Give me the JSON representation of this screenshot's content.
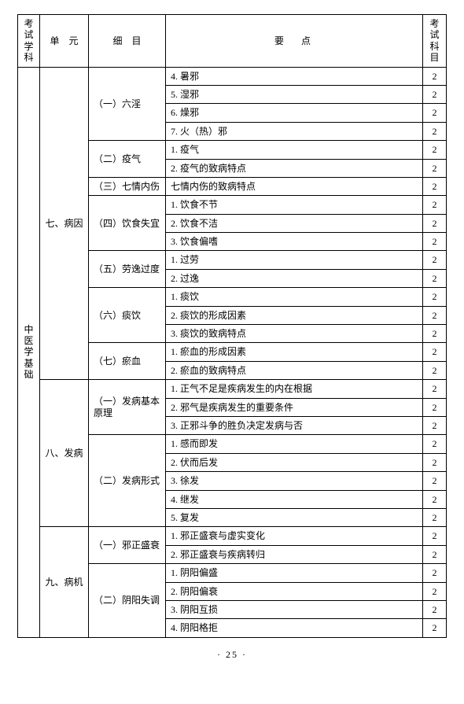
{
  "header": {
    "subject": "考试\n学科",
    "unit": "单　元",
    "detail": "细　目",
    "point": "要点",
    "subject2": "考试\n科目"
  },
  "subject_vertical": "中医学基础",
  "units": {
    "u7": "七、病因",
    "u8": "八、发病",
    "u9": "九、病机"
  },
  "details": {
    "d1": "（一）六淫",
    "d2": "（二）疫气",
    "d3": "（三）七情内伤",
    "d4": "（四）饮食失宜",
    "d5": "（五）劳逸过度",
    "d6": "（六）痰饮",
    "d7": "（七）瘀血",
    "d8": "（一）发病基本原理",
    "d9": "（二）发病形式",
    "d10": "（一）邪正盛衰",
    "d11": "（二）阴阳失调"
  },
  "rows": [
    {
      "point": "4. 暑邪",
      "subj2": "2"
    },
    {
      "point": "5. 湿邪",
      "subj2": "2"
    },
    {
      "point": "6. 燥邪",
      "subj2": "2"
    },
    {
      "point": "7. 火（热）邪",
      "subj2": "2"
    },
    {
      "point": "1. 疫气",
      "subj2": "2"
    },
    {
      "point": "2. 疫气的致病特点",
      "subj2": "2"
    },
    {
      "point": "七情内伤的致病特点",
      "subj2": "2"
    },
    {
      "point": "1. 饮食不节",
      "subj2": "2"
    },
    {
      "point": "2. 饮食不洁",
      "subj2": "2"
    },
    {
      "point": "3. 饮食偏嗜",
      "subj2": "2"
    },
    {
      "point": "1. 过劳",
      "subj2": "2"
    },
    {
      "point": "2. 过逸",
      "subj2": "2"
    },
    {
      "point": "1. 痰饮",
      "subj2": "2"
    },
    {
      "point": "2. 痰饮的形成因素",
      "subj2": "2"
    },
    {
      "point": "3. 痰饮的致病特点",
      "subj2": "2"
    },
    {
      "point": "1. 瘀血的形成因素",
      "subj2": "2"
    },
    {
      "point": "2. 瘀血的致病特点",
      "subj2": "2"
    },
    {
      "point": "1. 正气不足是疾病发生的内在根据",
      "subj2": "2"
    },
    {
      "point": "2. 邪气是疾病发生的重要条件",
      "subj2": "2"
    },
    {
      "point": "3. 正邪斗争的胜负决定发病与否",
      "subj2": "2"
    },
    {
      "point": "1. 感而即发",
      "subj2": "2"
    },
    {
      "point": "2. 伏而后发",
      "subj2": "2"
    },
    {
      "point": "3. 徐发",
      "subj2": "2"
    },
    {
      "point": "4. 继发",
      "subj2": "2"
    },
    {
      "point": "5. 复发",
      "subj2": "2"
    },
    {
      "point": "1. 邪正盛衰与虚实变化",
      "subj2": "2"
    },
    {
      "point": "2. 邪正盛衰与疾病转归",
      "subj2": "2"
    },
    {
      "point": "1. 阴阳偏盛",
      "subj2": "2"
    },
    {
      "point": "2. 阴阳偏衰",
      "subj2": "2"
    },
    {
      "point": "3. 阴阳互损",
      "subj2": "2"
    },
    {
      "point": "4. 阴阳格拒",
      "subj2": "2"
    }
  ],
  "page_number": "· 25 ·"
}
